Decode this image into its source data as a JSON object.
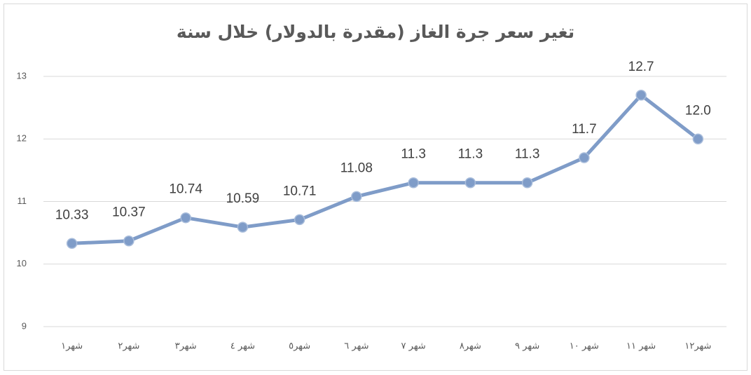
{
  "chart_data": {
    "type": "line",
    "title": "تغير سعر جرة الغاز (مقدرة بالدولار) خلال سنة",
    "categories": [
      "شهر١",
      "شهر٢",
      "شهر٣",
      "شهر ٤",
      "شهر٥",
      "شهر ٦",
      "شهر ٧",
      "شهر٨",
      "شهر ٩",
      "شهر ١٠",
      "شهر ١١",
      "شهر١٢"
    ],
    "values": [
      10.33,
      10.37,
      10.74,
      10.59,
      10.71,
      11.08,
      11.3,
      11.3,
      11.3,
      11.7,
      12.7,
      12.0
    ],
    "value_labels": [
      "10.33",
      "10.37",
      "10.74",
      "10.59",
      "10.71",
      "11.08",
      "11.3",
      "11.3",
      "11.3",
      "11.7",
      "12.7",
      "12.0"
    ],
    "color": "#7f9cc8",
    "ylim": [
      9,
      13
    ],
    "yticks": [
      9,
      10,
      11,
      12,
      13
    ],
    "grid": true
  }
}
